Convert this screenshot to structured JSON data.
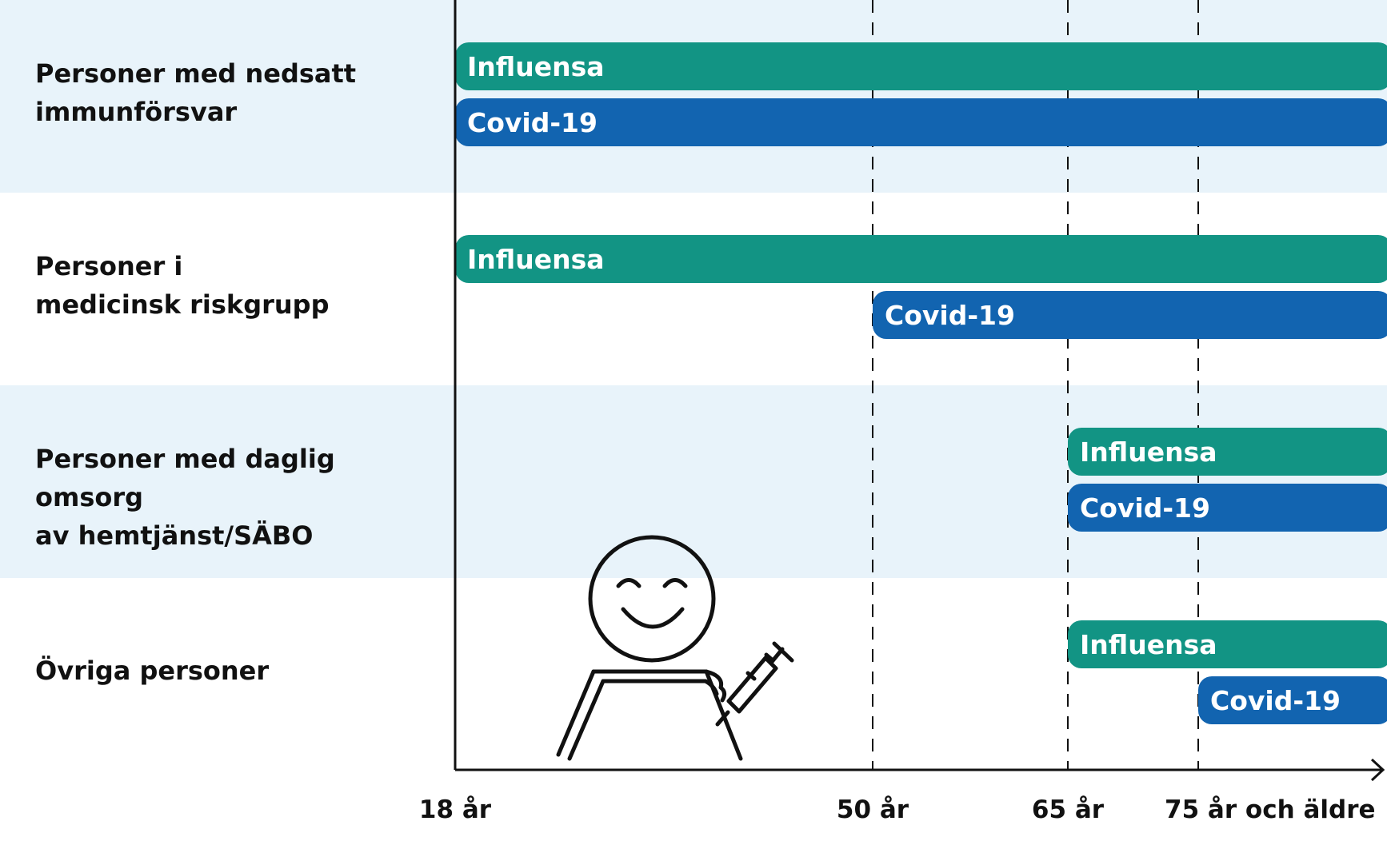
{
  "colors": {
    "band": "#e8f3fa",
    "influensa": "#129484",
    "covid": "#1264b0",
    "axis": "#111111"
  },
  "chart_data": {
    "type": "bar",
    "orientation": "horizontal-range",
    "x_ticks": [
      "18 år",
      "50 år",
      "65 år",
      "75 år och äldre"
    ],
    "x_tick_ages": [
      18,
      50,
      65,
      75
    ],
    "x_range": [
      18,
      90
    ],
    "categories": [
      "Personer med nedsatt immunförsvar",
      "Personer i medicinsk riskgrupp",
      "Personer med daglig omsorg av hemtjänst/SÄBO",
      "Övriga personer"
    ],
    "series": [
      {
        "name": "Influensa",
        "color_key": "influensa",
        "start_age": [
          18,
          18,
          65,
          65
        ]
      },
      {
        "name": "Covid-19",
        "color_key": "covid",
        "start_age": [
          18,
          50,
          65,
          75
        ]
      }
    ]
  },
  "row_labels": [
    [
      "Personer med nedsatt",
      "immunförsvar"
    ],
    [
      "Personer i",
      "medicinsk riskgrupp"
    ],
    [
      "Personer med daglig omsorg",
      "av hemtjänst/SÄBO"
    ],
    [
      "Övriga personer"
    ]
  ],
  "illustration": {
    "icon": "vaccinated-person-icon"
  }
}
